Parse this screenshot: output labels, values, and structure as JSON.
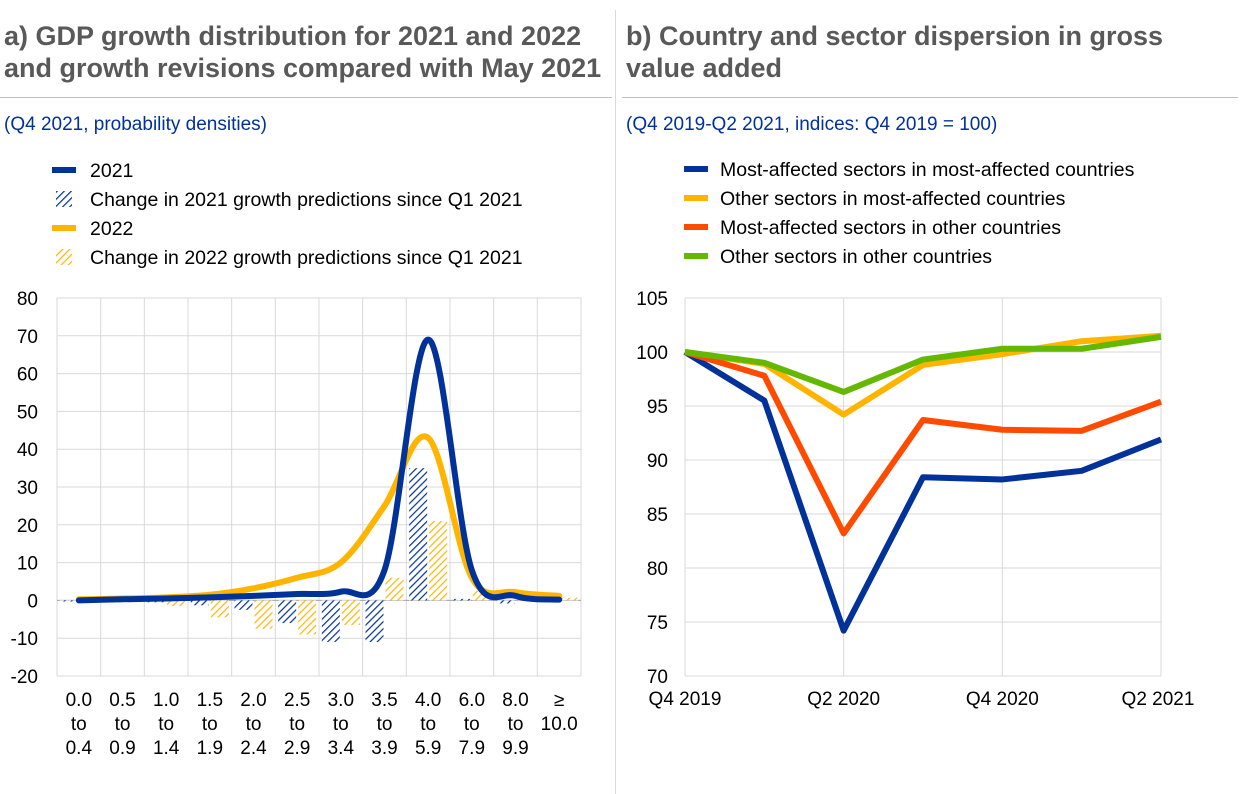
{
  "panels": {
    "a": {
      "title": "a) GDP growth distribution for 2021 and 2022\nand growth revisions compared with May 2021",
      "subtitle": "(Q4 2021, probability densities)"
    },
    "b": {
      "title": "b) Country and sector dispersion in gross\nvalue added",
      "subtitle": "(Q4 2019-Q2 2021, indices: Q4 2019 = 100)"
    }
  },
  "colors": {
    "blue": "#003299",
    "yellow": "#FFB400",
    "red": "#FF4B00",
    "green": "#65B800",
    "grid": "#d9d9d9",
    "title": "#595959"
  },
  "chart_data": [
    {
      "type": "bar",
      "title": "GDP growth distribution for 2021 and 2022 and growth revisions compared with May 2021",
      "subtitle": "(Q4 2021, probability densities)",
      "categories": [
        [
          "0.0",
          "to",
          "0.4"
        ],
        [
          "0.5",
          "to",
          "0.9"
        ],
        [
          "1.0",
          "to",
          "1.4"
        ],
        [
          "1.5",
          "to",
          "1.9"
        ],
        [
          "2.0",
          "to",
          "2.4"
        ],
        [
          "2.5",
          "to",
          "2.9"
        ],
        [
          "3.0",
          "to",
          "3.4"
        ],
        [
          "3.5",
          "to",
          "3.9"
        ],
        [
          "4.0",
          "to",
          "5.9"
        ],
        [
          "6.0",
          "to",
          "7.9"
        ],
        [
          "8.0",
          "to",
          "9.9"
        ],
        [
          "≥",
          "10.0",
          ""
        ]
      ],
      "ylim": [
        -20,
        80
      ],
      "yticks": [
        -20,
        -10,
        0,
        10,
        20,
        30,
        40,
        50,
        60,
        70,
        80
      ],
      "series": [
        {
          "name": "2021",
          "kind": "line",
          "color": "#003299",
          "values": [
            0,
            0.3,
            0.5,
            0.8,
            1.2,
            1.7,
            2.3,
            8.0,
            69,
            8.0,
            1.2,
            0.2
          ]
        },
        {
          "name": "Change in 2021 growth predictions since Q1 2021",
          "kind": "bar-hatched",
          "color": "#003299",
          "values": [
            -0.3,
            -0.5,
            -0.5,
            -1.3,
            -2.5,
            -6.0,
            -11.0,
            -11.0,
            35,
            0.4,
            -0.8,
            -0.2
          ]
        },
        {
          "name": "2022",
          "kind": "line",
          "color": "#FFB400",
          "values": [
            0.3,
            0.5,
            0.8,
            1.5,
            3.2,
            6.0,
            10.0,
            25.0,
            43,
            6.0,
            2.2,
            1.2
          ]
        },
        {
          "name": "Change in 2022 growth predictions since Q1 2021",
          "kind": "bar-hatched",
          "color": "#FFB400",
          "values": [
            0.2,
            -0.3,
            -1.5,
            -4.5,
            -7.5,
            -9.0,
            -6.5,
            6.0,
            21,
            2.5,
            0.6,
            0.7
          ]
        }
      ]
    },
    {
      "type": "line",
      "title": "Country and sector dispersion in gross value added",
      "subtitle": "(Q4 2019-Q2 2021, indices: Q4 2019 = 100)",
      "x": [
        "Q4 2019",
        "Q1 2020",
        "Q2 2020",
        "Q3 2020",
        "Q4 2020",
        "Q1 2021",
        "Q2 2021"
      ],
      "xtick_labels": [
        "Q4 2019",
        "",
        "Q2 2020",
        "",
        "Q4 2020",
        "",
        "Q2 2021"
      ],
      "ylim": [
        70,
        105
      ],
      "yticks": [
        70,
        75,
        80,
        85,
        90,
        95,
        100,
        105
      ],
      "series": [
        {
          "name": "Most-affected sectors in most-affected countries",
          "color": "#003299",
          "values": [
            100,
            95.5,
            74.2,
            88.4,
            88.2,
            89.0,
            91.9
          ]
        },
        {
          "name": "Other sectors in most-affected countries",
          "color": "#FFB400",
          "values": [
            100,
            98.9,
            94.2,
            98.8,
            99.8,
            101.0,
            101.5
          ]
        },
        {
          "name": "Most-affected sectors in other countries",
          "color": "#FF4B00",
          "values": [
            100,
            97.8,
            83.2,
            93.7,
            92.8,
            92.7,
            95.4
          ]
        },
        {
          "name": "Other sectors in other countries",
          "color": "#65B800",
          "values": [
            100,
            99.0,
            96.3,
            99.3,
            100.3,
            100.3,
            101.4
          ]
        }
      ]
    }
  ]
}
